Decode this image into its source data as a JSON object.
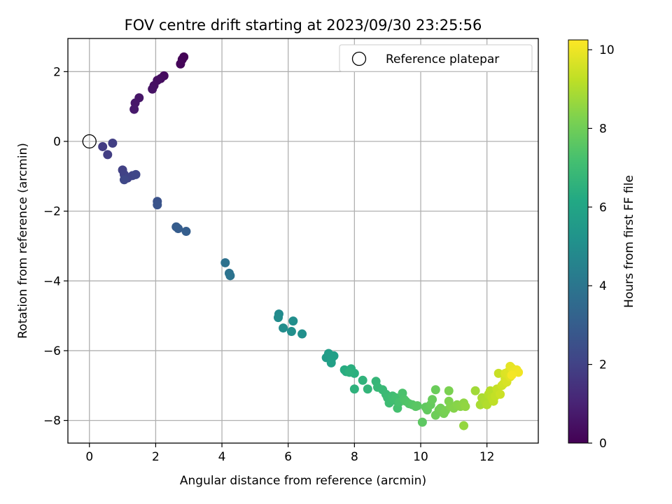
{
  "chart_data": {
    "type": "scatter",
    "title": "FOV centre drift starting at 2023/09/30 23:25:56",
    "xlabel": "Angular distance from reference (arcmin)",
    "ylabel": "Rotation from reference (arcmin)",
    "xlim": [
      -0.65,
      13.55
    ],
    "ylim": [
      -8.65,
      2.95
    ],
    "xticks": [
      0,
      2,
      4,
      6,
      8,
      10,
      12
    ],
    "xtick_labels": [
      "0",
      "2",
      "4",
      "6",
      "8",
      "10",
      "12"
    ],
    "yticks": [
      -8,
      -6,
      -4,
      -2,
      0,
      2
    ],
    "ytick_labels": [
      "−8",
      "−6",
      "−4",
      "−2",
      "0",
      "2"
    ],
    "grid": true,
    "legend": {
      "position": "top-right",
      "entries": [
        "Reference platepar"
      ]
    },
    "reference_point": {
      "x": 0,
      "y": 0
    },
    "colorbar": {
      "label": "Hours from first FF file",
      "range": [
        0,
        10.25
      ],
      "ticks": [
        0,
        2,
        4,
        6,
        8,
        10
      ],
      "tick_labels": [
        "0",
        "2",
        "4",
        "6",
        "8",
        "10"
      ],
      "colormap": "viridis"
    },
    "points": [
      {
        "x": 2.85,
        "y": 2.42,
        "c": 0.05
      },
      {
        "x": 2.8,
        "y": 2.35,
        "c": 0.1
      },
      {
        "x": 2.75,
        "y": 2.22,
        "c": 0.15
      },
      {
        "x": 2.25,
        "y": 1.88,
        "c": 0.3
      },
      {
        "x": 2.15,
        "y": 1.8,
        "c": 0.35
      },
      {
        "x": 2.05,
        "y": 1.75,
        "c": 0.4
      },
      {
        "x": 1.95,
        "y": 1.6,
        "c": 0.45
      },
      {
        "x": 1.9,
        "y": 1.5,
        "c": 0.5
      },
      {
        "x": 1.5,
        "y": 1.25,
        "c": 0.6
      },
      {
        "x": 1.38,
        "y": 1.1,
        "c": 0.65
      },
      {
        "x": 1.35,
        "y": 0.92,
        "c": 0.7
      },
      {
        "x": 0.4,
        "y": -0.15,
        "c": 1.8
      },
      {
        "x": 0.55,
        "y": -0.38,
        "c": 1.85
      },
      {
        "x": 0.7,
        "y": -0.05,
        "c": 1.9
      },
      {
        "x": 1.0,
        "y": -0.82,
        "c": 1.95
      },
      {
        "x": 1.05,
        "y": -0.95,
        "c": 2.0
      },
      {
        "x": 1.15,
        "y": -1.05,
        "c": 2.05
      },
      {
        "x": 1.3,
        "y": -0.98,
        "c": 2.1
      },
      {
        "x": 1.4,
        "y": -0.95,
        "c": 2.15
      },
      {
        "x": 1.05,
        "y": -1.1,
        "c": 2.2
      },
      {
        "x": 2.05,
        "y": -1.72,
        "c": 2.6
      },
      {
        "x": 2.05,
        "y": -1.82,
        "c": 2.65
      },
      {
        "x": 2.62,
        "y": -2.45,
        "c": 2.95
      },
      {
        "x": 2.68,
        "y": -2.5,
        "c": 3.0
      },
      {
        "x": 2.92,
        "y": -2.58,
        "c": 3.05
      },
      {
        "x": 4.1,
        "y": -3.48,
        "c": 3.8
      },
      {
        "x": 4.22,
        "y": -3.78,
        "c": 3.85
      },
      {
        "x": 4.25,
        "y": -3.85,
        "c": 3.9
      },
      {
        "x": 5.72,
        "y": -4.95,
        "c": 4.85
      },
      {
        "x": 5.7,
        "y": -5.05,
        "c": 4.9
      },
      {
        "x": 5.85,
        "y": -5.35,
        "c": 4.95
      },
      {
        "x": 6.15,
        "y": -5.15,
        "c": 5.0
      },
      {
        "x": 6.1,
        "y": -5.45,
        "c": 5.05
      },
      {
        "x": 6.42,
        "y": -5.52,
        "c": 5.1
      },
      {
        "x": 7.15,
        "y": -6.2,
        "c": 5.6
      },
      {
        "x": 7.22,
        "y": -6.08,
        "c": 5.65
      },
      {
        "x": 7.3,
        "y": -6.25,
        "c": 5.7
      },
      {
        "x": 7.38,
        "y": -6.15,
        "c": 5.75
      },
      {
        "x": 7.3,
        "y": -6.35,
        "c": 5.8
      },
      {
        "x": 7.7,
        "y": -6.55,
        "c": 6.3
      },
      {
        "x": 7.75,
        "y": -6.6,
        "c": 6.35
      },
      {
        "x": 7.9,
        "y": -6.52,
        "c": 6.4
      },
      {
        "x": 8.0,
        "y": -6.65,
        "c": 6.45
      },
      {
        "x": 7.85,
        "y": -6.62,
        "c": 6.5
      },
      {
        "x": 8.0,
        "y": -7.1,
        "c": 6.55
      },
      {
        "x": 8.25,
        "y": -6.85,
        "c": 6.6
      },
      {
        "x": 8.4,
        "y": -7.1,
        "c": 6.7
      },
      {
        "x": 8.65,
        "y": -6.88,
        "c": 6.75
      },
      {
        "x": 8.7,
        "y": -7.05,
        "c": 6.8
      },
      {
        "x": 8.85,
        "y": -7.12,
        "c": 6.85
      },
      {
        "x": 8.95,
        "y": -7.25,
        "c": 6.9
      },
      {
        "x": 9.0,
        "y": -7.35,
        "c": 6.95
      },
      {
        "x": 9.05,
        "y": -7.5,
        "c": 7.0
      },
      {
        "x": 9.15,
        "y": -7.3,
        "c": 7.05
      },
      {
        "x": 9.2,
        "y": -7.42,
        "c": 7.1
      },
      {
        "x": 9.25,
        "y": -7.35,
        "c": 7.15
      },
      {
        "x": 9.3,
        "y": -7.65,
        "c": 7.2
      },
      {
        "x": 9.35,
        "y": -7.48,
        "c": 7.25
      },
      {
        "x": 9.45,
        "y": -7.22,
        "c": 7.3
      },
      {
        "x": 9.5,
        "y": -7.4,
        "c": 7.35
      },
      {
        "x": 9.55,
        "y": -7.45,
        "c": 7.4
      },
      {
        "x": 9.65,
        "y": -7.52,
        "c": 7.45
      },
      {
        "x": 9.75,
        "y": -7.55,
        "c": 7.5
      },
      {
        "x": 9.85,
        "y": -7.6,
        "c": 7.55
      },
      {
        "x": 9.9,
        "y": -7.58,
        "c": 7.6
      },
      {
        "x": 10.05,
        "y": -8.05,
        "c": 7.65
      },
      {
        "x": 10.15,
        "y": -7.62,
        "c": 7.7
      },
      {
        "x": 10.2,
        "y": -7.7,
        "c": 7.75
      },
      {
        "x": 10.3,
        "y": -7.55,
        "c": 7.8
      },
      {
        "x": 10.35,
        "y": -7.4,
        "c": 7.85
      },
      {
        "x": 10.45,
        "y": -7.12,
        "c": 7.9
      },
      {
        "x": 10.45,
        "y": -7.85,
        "c": 7.95
      },
      {
        "x": 10.55,
        "y": -7.7,
        "c": 8.0
      },
      {
        "x": 10.6,
        "y": -7.65,
        "c": 8.05
      },
      {
        "x": 10.7,
        "y": -7.8,
        "c": 8.1
      },
      {
        "x": 10.75,
        "y": -7.72,
        "c": 8.15
      },
      {
        "x": 10.85,
        "y": -7.15,
        "c": 8.2
      },
      {
        "x": 10.85,
        "y": -7.45,
        "c": 8.25
      },
      {
        "x": 10.9,
        "y": -7.6,
        "c": 8.3
      },
      {
        "x": 11.0,
        "y": -7.65,
        "c": 8.35
      },
      {
        "x": 11.1,
        "y": -7.55,
        "c": 8.4
      },
      {
        "x": 11.2,
        "y": -7.6,
        "c": 8.45
      },
      {
        "x": 11.3,
        "y": -7.5,
        "c": 8.5
      },
      {
        "x": 11.35,
        "y": -7.6,
        "c": 8.55
      },
      {
        "x": 11.3,
        "y": -8.15,
        "c": 8.6
      },
      {
        "x": 11.65,
        "y": -7.15,
        "c": 8.8
      },
      {
        "x": 11.8,
        "y": -7.55,
        "c": 8.9
      },
      {
        "x": 11.85,
        "y": -7.35,
        "c": 8.95
      },
      {
        "x": 11.95,
        "y": -7.45,
        "c": 9.0
      },
      {
        "x": 12.0,
        "y": -7.55,
        "c": 9.05
      },
      {
        "x": 12.05,
        "y": -7.25,
        "c": 9.1
      },
      {
        "x": 12.1,
        "y": -7.15,
        "c": 9.15
      },
      {
        "x": 12.15,
        "y": -7.35,
        "c": 9.2
      },
      {
        "x": 12.2,
        "y": -7.45,
        "c": 9.25
      },
      {
        "x": 12.25,
        "y": -7.3,
        "c": 9.3
      },
      {
        "x": 12.3,
        "y": -7.1,
        "c": 9.35
      },
      {
        "x": 12.35,
        "y": -6.65,
        "c": 9.4
      },
      {
        "x": 12.4,
        "y": -7.25,
        "c": 9.45
      },
      {
        "x": 12.45,
        "y": -7.0,
        "c": 9.5
      },
      {
        "x": 12.5,
        "y": -6.95,
        "c": 9.55
      },
      {
        "x": 12.55,
        "y": -6.8,
        "c": 9.6
      },
      {
        "x": 12.6,
        "y": -6.9,
        "c": 9.65
      },
      {
        "x": 12.55,
        "y": -6.65,
        "c": 9.7
      },
      {
        "x": 12.65,
        "y": -6.6,
        "c": 9.75
      },
      {
        "x": 12.7,
        "y": -6.75,
        "c": 9.8
      },
      {
        "x": 12.7,
        "y": -6.45,
        "c": 9.85
      },
      {
        "x": 12.75,
        "y": -6.5,
        "c": 9.9
      },
      {
        "x": 12.8,
        "y": -6.6,
        "c": 9.95
      },
      {
        "x": 12.9,
        "y": -6.55,
        "c": 10.0
      },
      {
        "x": 12.95,
        "y": -6.62,
        "c": 10.05
      },
      {
        "x": 12.75,
        "y": -6.7,
        "c": 10.1
      }
    ]
  }
}
